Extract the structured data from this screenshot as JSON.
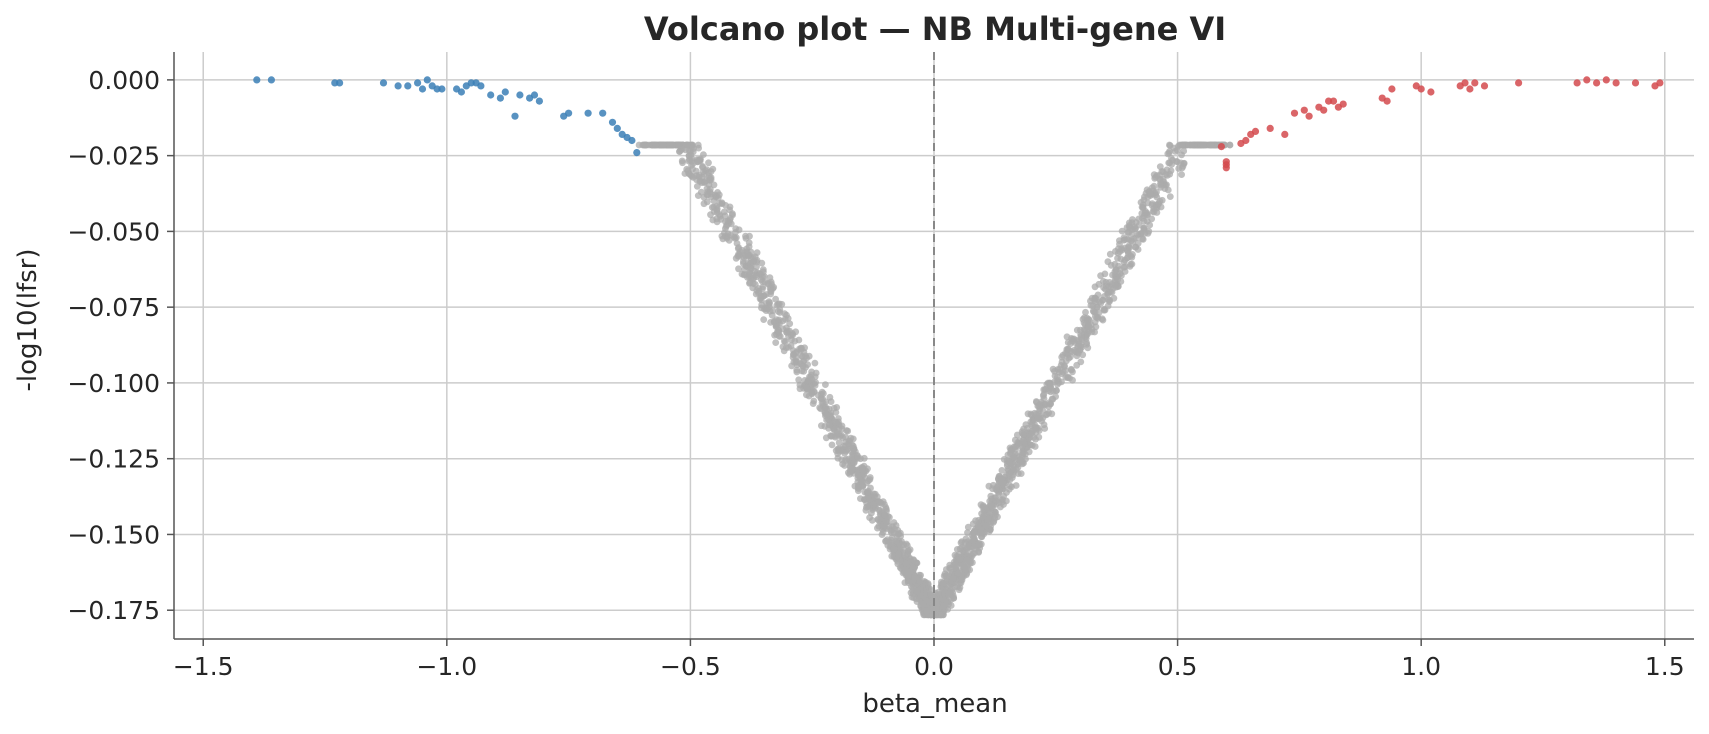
{
  "chart_data": {
    "type": "scatter",
    "title": "Volcano plot — NB Multi-gene VI",
    "xlabel": "beta_mean",
    "ylabel": "-log10(lfsr)",
    "xlim": [
      -1.56,
      1.56
    ],
    "ylim": [
      -0.1845,
      0.0092
    ],
    "x_ticks": [
      -1.5,
      -1.0,
      -0.5,
      0.0,
      0.5,
      1.0,
      1.5
    ],
    "x_tick_labels": [
      "−1.5",
      "−1.0",
      "−0.5",
      "0.0",
      "0.5",
      "1.0",
      "1.5"
    ],
    "y_ticks": [
      0.0,
      -0.025,
      -0.05,
      -0.075,
      -0.1,
      -0.125,
      -0.15,
      -0.175
    ],
    "y_tick_labels": [
      "0.000",
      "−0.025",
      "−0.050",
      "−0.075",
      "−0.100",
      "−0.125",
      "−0.150",
      "−0.175"
    ],
    "grid": true,
    "reference_line_x": 0.0,
    "colors": {
      "down": "#3b7fb6",
      "up": "#d44a4d",
      "not_significant": "#ababab",
      "reference_line": "#888888"
    },
    "series": [
      {
        "class": "down",
        "x": [
          -1.39,
          -1.36,
          -1.23,
          -1.22,
          -1.13,
          -1.1,
          -1.08,
          -1.06,
          -1.05,
          -1.04,
          -1.03,
          -1.02,
          -1.01,
          -0.98,
          -0.97,
          -0.96,
          -0.95,
          -0.94,
          -0.93,
          -0.91,
          -0.89,
          -0.88,
          -0.86,
          -0.85,
          -0.83,
          -0.82,
          -0.81,
          -0.76,
          -0.75,
          -0.71,
          -0.68,
          -0.66,
          -0.65,
          -0.64,
          -0.63,
          -0.62,
          -0.61
        ],
        "y": [
          0.0,
          0.0,
          -0.001,
          -0.001,
          -0.001,
          -0.002,
          -0.002,
          -0.001,
          -0.003,
          0.0,
          -0.002,
          -0.003,
          -0.003,
          -0.003,
          -0.004,
          -0.002,
          -0.001,
          -0.001,
          -0.002,
          -0.005,
          -0.006,
          -0.004,
          -0.012,
          -0.005,
          -0.006,
          -0.005,
          -0.007,
          -0.012,
          -0.011,
          -0.011,
          -0.011,
          -0.014,
          -0.016,
          -0.018,
          -0.019,
          -0.02,
          -0.024
        ]
      },
      {
        "class": "up",
        "x": [
          0.59,
          0.6,
          0.6,
          0.6,
          0.63,
          0.64,
          0.65,
          0.66,
          0.69,
          0.72,
          0.74,
          0.76,
          0.77,
          0.79,
          0.8,
          0.81,
          0.82,
          0.83,
          0.84,
          0.92,
          0.93,
          0.94,
          0.99,
          1.0,
          1.02,
          1.08,
          1.09,
          1.1,
          1.11,
          1.13,
          1.2,
          1.32,
          1.34,
          1.36,
          1.38,
          1.4,
          1.44,
          1.48,
          1.49
        ],
        "y": [
          -0.022,
          -0.027,
          -0.028,
          -0.029,
          -0.021,
          -0.02,
          -0.018,
          -0.017,
          -0.016,
          -0.018,
          -0.011,
          -0.01,
          -0.012,
          -0.009,
          -0.01,
          -0.007,
          -0.007,
          -0.009,
          -0.008,
          -0.006,
          -0.007,
          -0.003,
          -0.002,
          -0.003,
          -0.004,
          -0.002,
          -0.001,
          -0.003,
          -0.001,
          -0.002,
          -0.001,
          -0.001,
          0.0,
          -0.001,
          0.0,
          -0.001,
          -0.001,
          -0.002,
          -0.001
        ]
      },
      {
        "class": "not_significant",
        "curve": "y = max(-0.177, -0.177 + 0.3055*|x|) for 0.005 <= |x| <= 0.59, with scatter around the V-shaped curve"
      }
    ]
  }
}
